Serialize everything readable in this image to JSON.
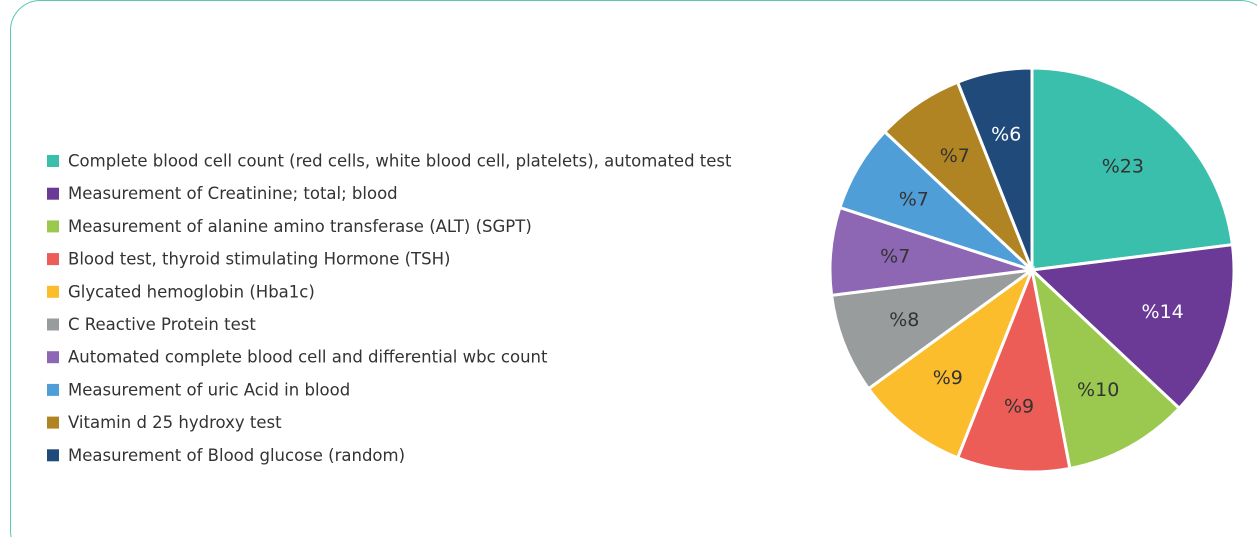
{
  "chart_data": {
    "type": "pie",
    "categories": [
      "Complete blood cell count (red cells, white blood cell, platelets), automated test",
      "Measurement of Creatinine; total; blood",
      "Measurement of alanine amino transferase (ALT) (SGPT)",
      "Blood test, thyroid stimulating Hormone (TSH)",
      "Glycated hemoglobin (Hba1c)",
      "C Reactive Protein  test",
      "Automated complete blood cell  and differential wbc count",
      "Measurement of uric Acid in blood",
      "Vitamin d 25 hydroxy test",
      "Measurement of Blood glucose (random)"
    ],
    "values": [
      23,
      14,
      10,
      9,
      9,
      8,
      7,
      7,
      7,
      6
    ],
    "value_labels": [
      "%23",
      "%14",
      "%10",
      "%9",
      "%9",
      "%8",
      "%7",
      "%7",
      "%7",
      "%6"
    ],
    "colors": [
      "#3bbfad",
      "#6a3a96",
      "#9bc94f",
      "#ec5d57",
      "#fbbd2c",
      "#999c9c",
      "#8d67b3",
      "#509ed8",
      "#b08423",
      "#1f4a7a"
    ],
    "legend": "left"
  }
}
